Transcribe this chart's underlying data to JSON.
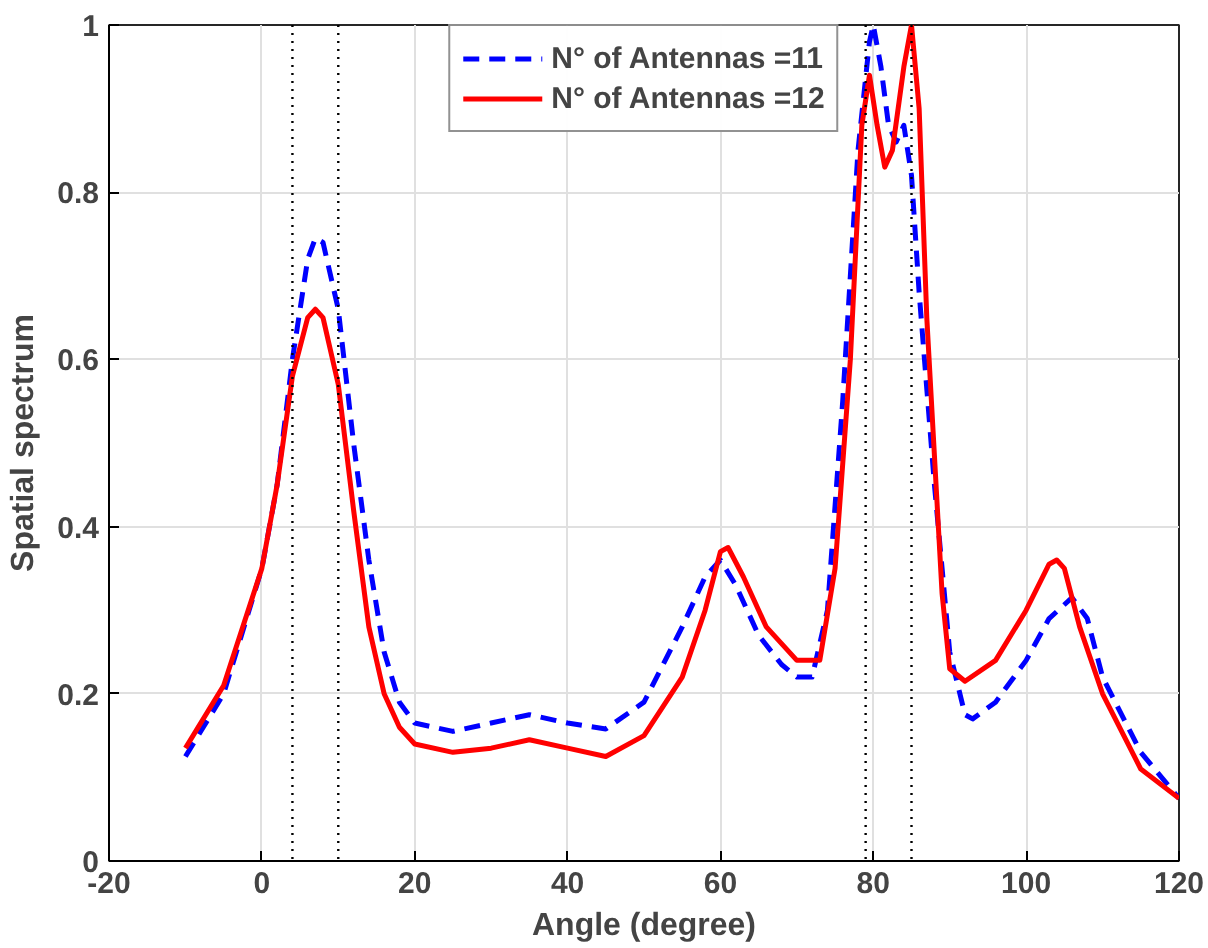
{
  "chart_data": {
    "type": "line",
    "xlabel": "Angle (degree)",
    "ylabel": "Spatial spectrum",
    "xlim": [
      -20,
      120
    ],
    "xticks": [
      -20,
      0,
      20,
      40,
      60,
      80,
      100,
      120
    ],
    "ylim": [
      0,
      1
    ],
    "yticks": [
      0,
      0.2,
      0.4,
      0.6,
      0.8,
      1
    ],
    "grid": true,
    "legend": "top",
    "series": [
      {
        "name": "N° of Antennas =11",
        "color": "#0000ff",
        "line_style": "dashed",
        "x": [
          -10,
          -5,
          0,
          2,
          4,
          6,
          7,
          8,
          10,
          12,
          14,
          16,
          18,
          20,
          25,
          30,
          35,
          40,
          45,
          50,
          55,
          58,
          60,
          62,
          65,
          68,
          70,
          72,
          74,
          76,
          78,
          79.5,
          80,
          81,
          82,
          83,
          84,
          85,
          86,
          88,
          90,
          92,
          93,
          96,
          100,
          103,
          106,
          108,
          110,
          115,
          120
        ],
        "values": [
          0.125,
          0.2,
          0.35,
          0.45,
          0.6,
          0.72,
          0.745,
          0.74,
          0.66,
          0.5,
          0.36,
          0.25,
          0.19,
          0.165,
          0.155,
          0.165,
          0.175,
          0.165,
          0.158,
          0.19,
          0.28,
          0.34,
          0.36,
          0.33,
          0.27,
          0.235,
          0.22,
          0.22,
          0.3,
          0.55,
          0.85,
          0.98,
          1.0,
          0.95,
          0.88,
          0.86,
          0.88,
          0.82,
          0.68,
          0.45,
          0.25,
          0.175,
          0.17,
          0.19,
          0.24,
          0.29,
          0.315,
          0.29,
          0.22,
          0.13,
          0.075
        ]
      },
      {
        "name": "N° of Antennas =12",
        "color": "#ff0000",
        "line_style": "solid",
        "x": [
          -10,
          -5,
          0,
          2,
          4,
          6,
          7,
          8,
          10,
          12,
          14,
          16,
          18,
          20,
          25,
          30,
          35,
          40,
          45,
          50,
          55,
          58,
          60,
          61,
          63,
          66,
          70,
          73,
          75,
          77,
          78.5,
          79.5,
          80.5,
          81.5,
          82.5,
          84,
          85,
          86,
          87,
          89,
          90,
          92,
          96,
          100,
          103,
          104,
          105,
          107,
          110,
          115,
          120
        ],
        "values": [
          0.135,
          0.21,
          0.35,
          0.45,
          0.58,
          0.65,
          0.66,
          0.65,
          0.57,
          0.42,
          0.28,
          0.2,
          0.16,
          0.14,
          0.13,
          0.135,
          0.145,
          0.135,
          0.125,
          0.15,
          0.22,
          0.3,
          0.37,
          0.375,
          0.34,
          0.28,
          0.24,
          0.24,
          0.35,
          0.6,
          0.88,
          0.94,
          0.88,
          0.83,
          0.85,
          0.95,
          1.0,
          0.9,
          0.65,
          0.32,
          0.23,
          0.215,
          0.24,
          0.3,
          0.355,
          0.36,
          0.35,
          0.28,
          0.2,
          0.11,
          0.075
        ]
      }
    ],
    "ref_lines": [
      {
        "axis": "x",
        "value": 4,
        "color": "#000000",
        "line_style": "dotted"
      },
      {
        "axis": "x",
        "value": 10,
        "color": "#000000",
        "line_style": "dotted"
      },
      {
        "axis": "x",
        "value": 79,
        "color": "#000000",
        "line_style": "dotted"
      },
      {
        "axis": "x",
        "value": 85,
        "color": "#000000",
        "line_style": "dotted"
      }
    ]
  }
}
